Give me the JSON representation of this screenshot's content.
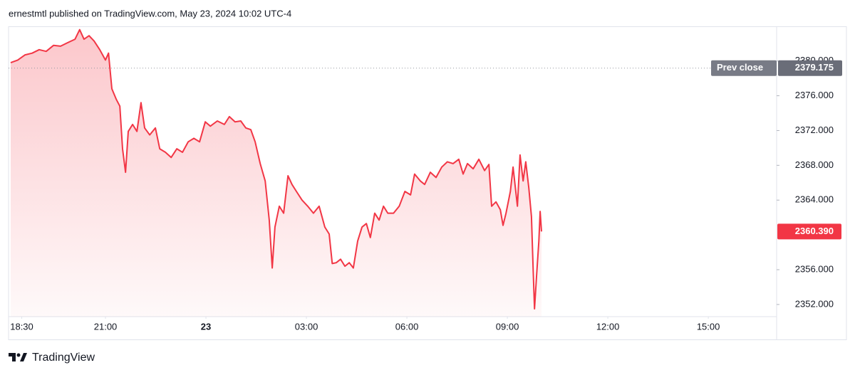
{
  "chart_data": {
    "type": "line",
    "header": "ernestmtl published on TradingView.com, May 23, 2024 10:02 UTC-4",
    "brand": "TradingView",
    "color": "#f23645",
    "xlim": [
      0.106,
      23.04
    ],
    "ylim": [
      2350.6,
      2383.9
    ],
    "xticks": [
      {
        "value": 0.5,
        "label": "18:30"
      },
      {
        "value": 3,
        "label": "21:00"
      },
      {
        "value": 6,
        "label": "23"
      },
      {
        "value": 9,
        "label": "03:00"
      },
      {
        "value": 12,
        "label": "06:00"
      },
      {
        "value": 15,
        "label": "09:00"
      },
      {
        "value": 18,
        "label": "12:00"
      },
      {
        "value": 21,
        "label": "15:00"
      }
    ],
    "yticks": [
      {
        "value": 2352,
        "label": "2352.000"
      },
      {
        "value": 2356,
        "label": "2356.000"
      },
      {
        "value": 2364,
        "label": "2364.000"
      },
      {
        "value": 2368,
        "label": "2368.000"
      },
      {
        "value": 2372,
        "label": "2372.000"
      },
      {
        "value": 2376,
        "label": "2376.000"
      },
      {
        "value": 2380,
        "label": "2380.000"
      }
    ],
    "prev_close": {
      "name": "Prev close",
      "value": 2379.175
    },
    "last_price": {
      "value": 2360.39,
      "label": "2360.390"
    },
    "x": [
      0.17,
      0.38,
      0.6,
      0.81,
      1.02,
      1.23,
      1.45,
      1.66,
      1.87,
      2.09,
      2.23,
      2.36,
      2.51,
      2.66,
      2.83,
      3.0,
      3.09,
      3.19,
      3.32,
      3.43,
      3.51,
      3.6,
      3.68,
      3.81,
      3.94,
      4.06,
      4.17,
      4.32,
      4.49,
      4.62,
      4.79,
      4.96,
      5.13,
      5.3,
      5.47,
      5.64,
      5.81,
      5.98,
      6.13,
      6.34,
      6.55,
      6.7,
      6.87,
      7.04,
      7.19,
      7.34,
      7.47,
      7.62,
      7.77,
      7.89,
      7.98,
      8.06,
      8.19,
      8.32,
      8.45,
      8.57,
      8.7,
      8.87,
      9.04,
      9.21,
      9.38,
      9.55,
      9.68,
      9.77,
      9.89,
      10.02,
      10.15,
      10.28,
      10.4,
      10.53,
      10.66,
      10.79,
      10.91,
      11.04,
      11.17,
      11.3,
      11.43,
      11.6,
      11.77,
      11.94,
      12.11,
      12.23,
      12.4,
      12.53,
      12.7,
      12.87,
      13.04,
      13.21,
      13.38,
      13.55,
      13.68,
      13.81,
      13.98,
      14.15,
      14.32,
      14.45,
      14.53,
      14.66,
      14.79,
      14.87,
      14.96,
      15.09,
      15.17,
      15.3,
      15.38,
      15.47,
      15.55,
      15.64,
      15.72,
      15.77,
      15.81,
      15.87,
      15.94,
      15.98,
      16.02
    ],
    "values": [
      2379.8,
      2380.1,
      2380.7,
      2380.9,
      2381.3,
      2381.1,
      2381.8,
      2381.7,
      2382.1,
      2382.5,
      2383.6,
      2382.5,
      2382.9,
      2382.3,
      2381.3,
      2380.1,
      2380.9,
      2376.8,
      2375.6,
      2374.8,
      2369.9,
      2367.2,
      2371.9,
      2372.7,
      2371.9,
      2375.2,
      2372.3,
      2371.5,
      2372.3,
      2369.9,
      2369.5,
      2368.9,
      2369.9,
      2369.5,
      2370.7,
      2371.1,
      2370.7,
      2373.0,
      2372.5,
      2373.1,
      2372.7,
      2373.6,
      2373.0,
      2373.1,
      2372.3,
      2372.1,
      2370.7,
      2368.2,
      2366.2,
      2361.7,
      2356.2,
      2360.9,
      2363.3,
      2362.5,
      2366.8,
      2365.8,
      2365.0,
      2364.0,
      2363.3,
      2362.5,
      2363.3,
      2360.9,
      2360.1,
      2356.7,
      2356.8,
      2357.2,
      2356.4,
      2356.8,
      2356.2,
      2359.3,
      2360.9,
      2361.3,
      2359.7,
      2362.5,
      2361.7,
      2363.3,
      2362.5,
      2362.5,
      2363.3,
      2365.0,
      2364.6,
      2367.0,
      2366.2,
      2365.8,
      2367.2,
      2366.6,
      2367.8,
      2368.4,
      2368.2,
      2368.7,
      2367.0,
      2368.2,
      2367.6,
      2368.7,
      2367.4,
      2368.1,
      2363.3,
      2363.8,
      2362.9,
      2361.1,
      2362.5,
      2365.0,
      2367.8,
      2363.3,
      2369.2,
      2366.2,
      2368.4,
      2365.4,
      2362.1,
      2356.0,
      2351.5,
      2355.2,
      2359.3,
      2362.7,
      2360.39
    ]
  }
}
